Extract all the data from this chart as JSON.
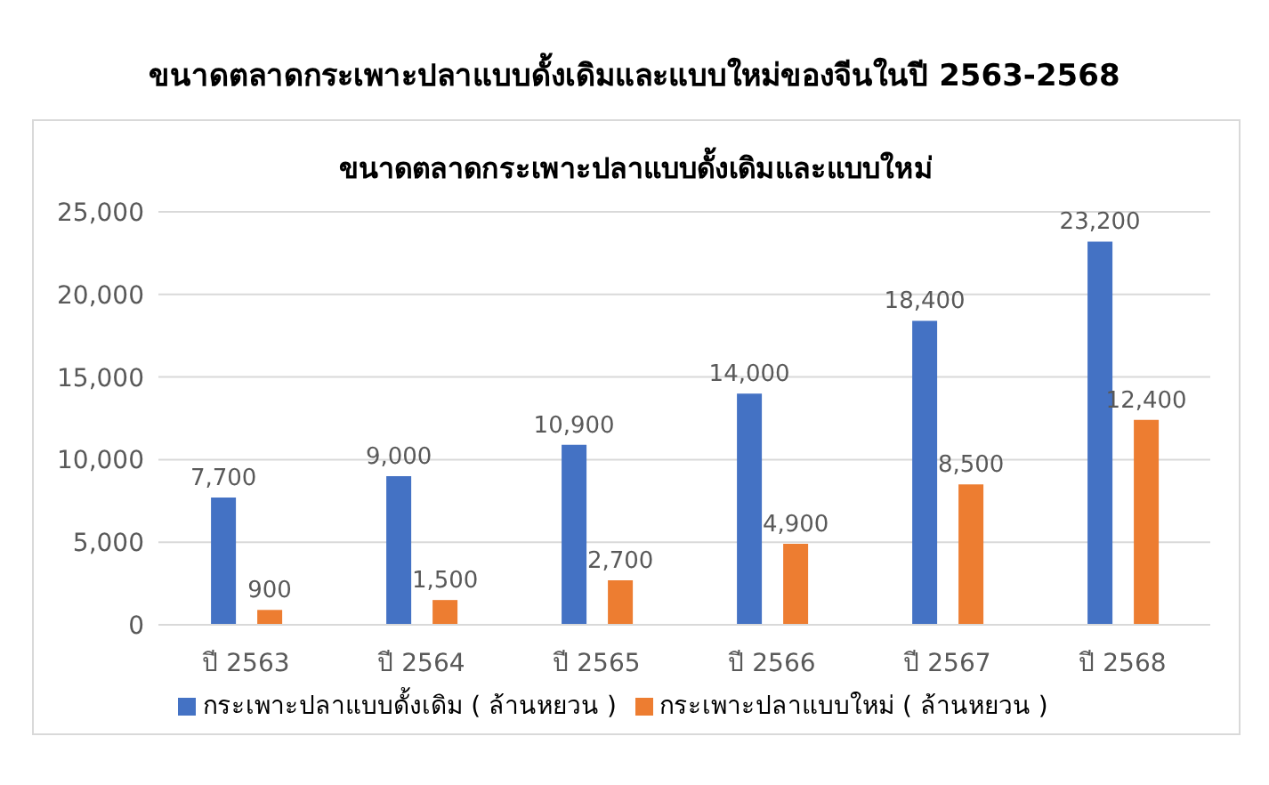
{
  "chart_data": {
    "type": "bar",
    "title": "ขนาดตลาดกระเพาะปลาแบบดั้งเดิมและแบบใหม่ของจีนในปี 2563-2568",
    "subtitle": "ขนาดตลาดกระเพาะปลาแบบดั้งเดิมและแบบใหม่",
    "categories": [
      "ปี 2563",
      "ปี 2564",
      "ปี 2565",
      "ปี 2566",
      "ปี 2567",
      "ปี 2568"
    ],
    "series": [
      {
        "name": "กระเพาะปลาแบบดั้งเดิม ( ล้านหยวน )",
        "color": "#4472c4",
        "values": [
          7700,
          9000,
          10900,
          14000,
          18400,
          23200
        ],
        "value_labels": [
          "7,700",
          "9,000",
          "10,900",
          "14,000",
          "18,400",
          "23,200"
        ]
      },
      {
        "name": "กระเพาะปลาแบบใหม่ ( ล้านหยวน )",
        "color": "#ed7d31",
        "values": [
          900,
          1500,
          2700,
          4900,
          8500,
          12400
        ],
        "value_labels": [
          "900",
          "1,500",
          "2,700",
          "4,900",
          "8,500",
          "12,400"
        ]
      }
    ],
    "ylim": [
      0,
      25000
    ],
    "yticks": [
      0,
      {
        "value": 5000,
        "label": "5,000"
      },
      {
        "value": 10000,
        "label": "10,000"
      },
      {
        "value": 15000,
        "label": "15,000"
      },
      {
        "value": 20000,
        "label": "20,000"
      },
      {
        "value": 25000,
        "label": "25,000"
      }
    ],
    "grid": "y",
    "legend": "bottom"
  }
}
